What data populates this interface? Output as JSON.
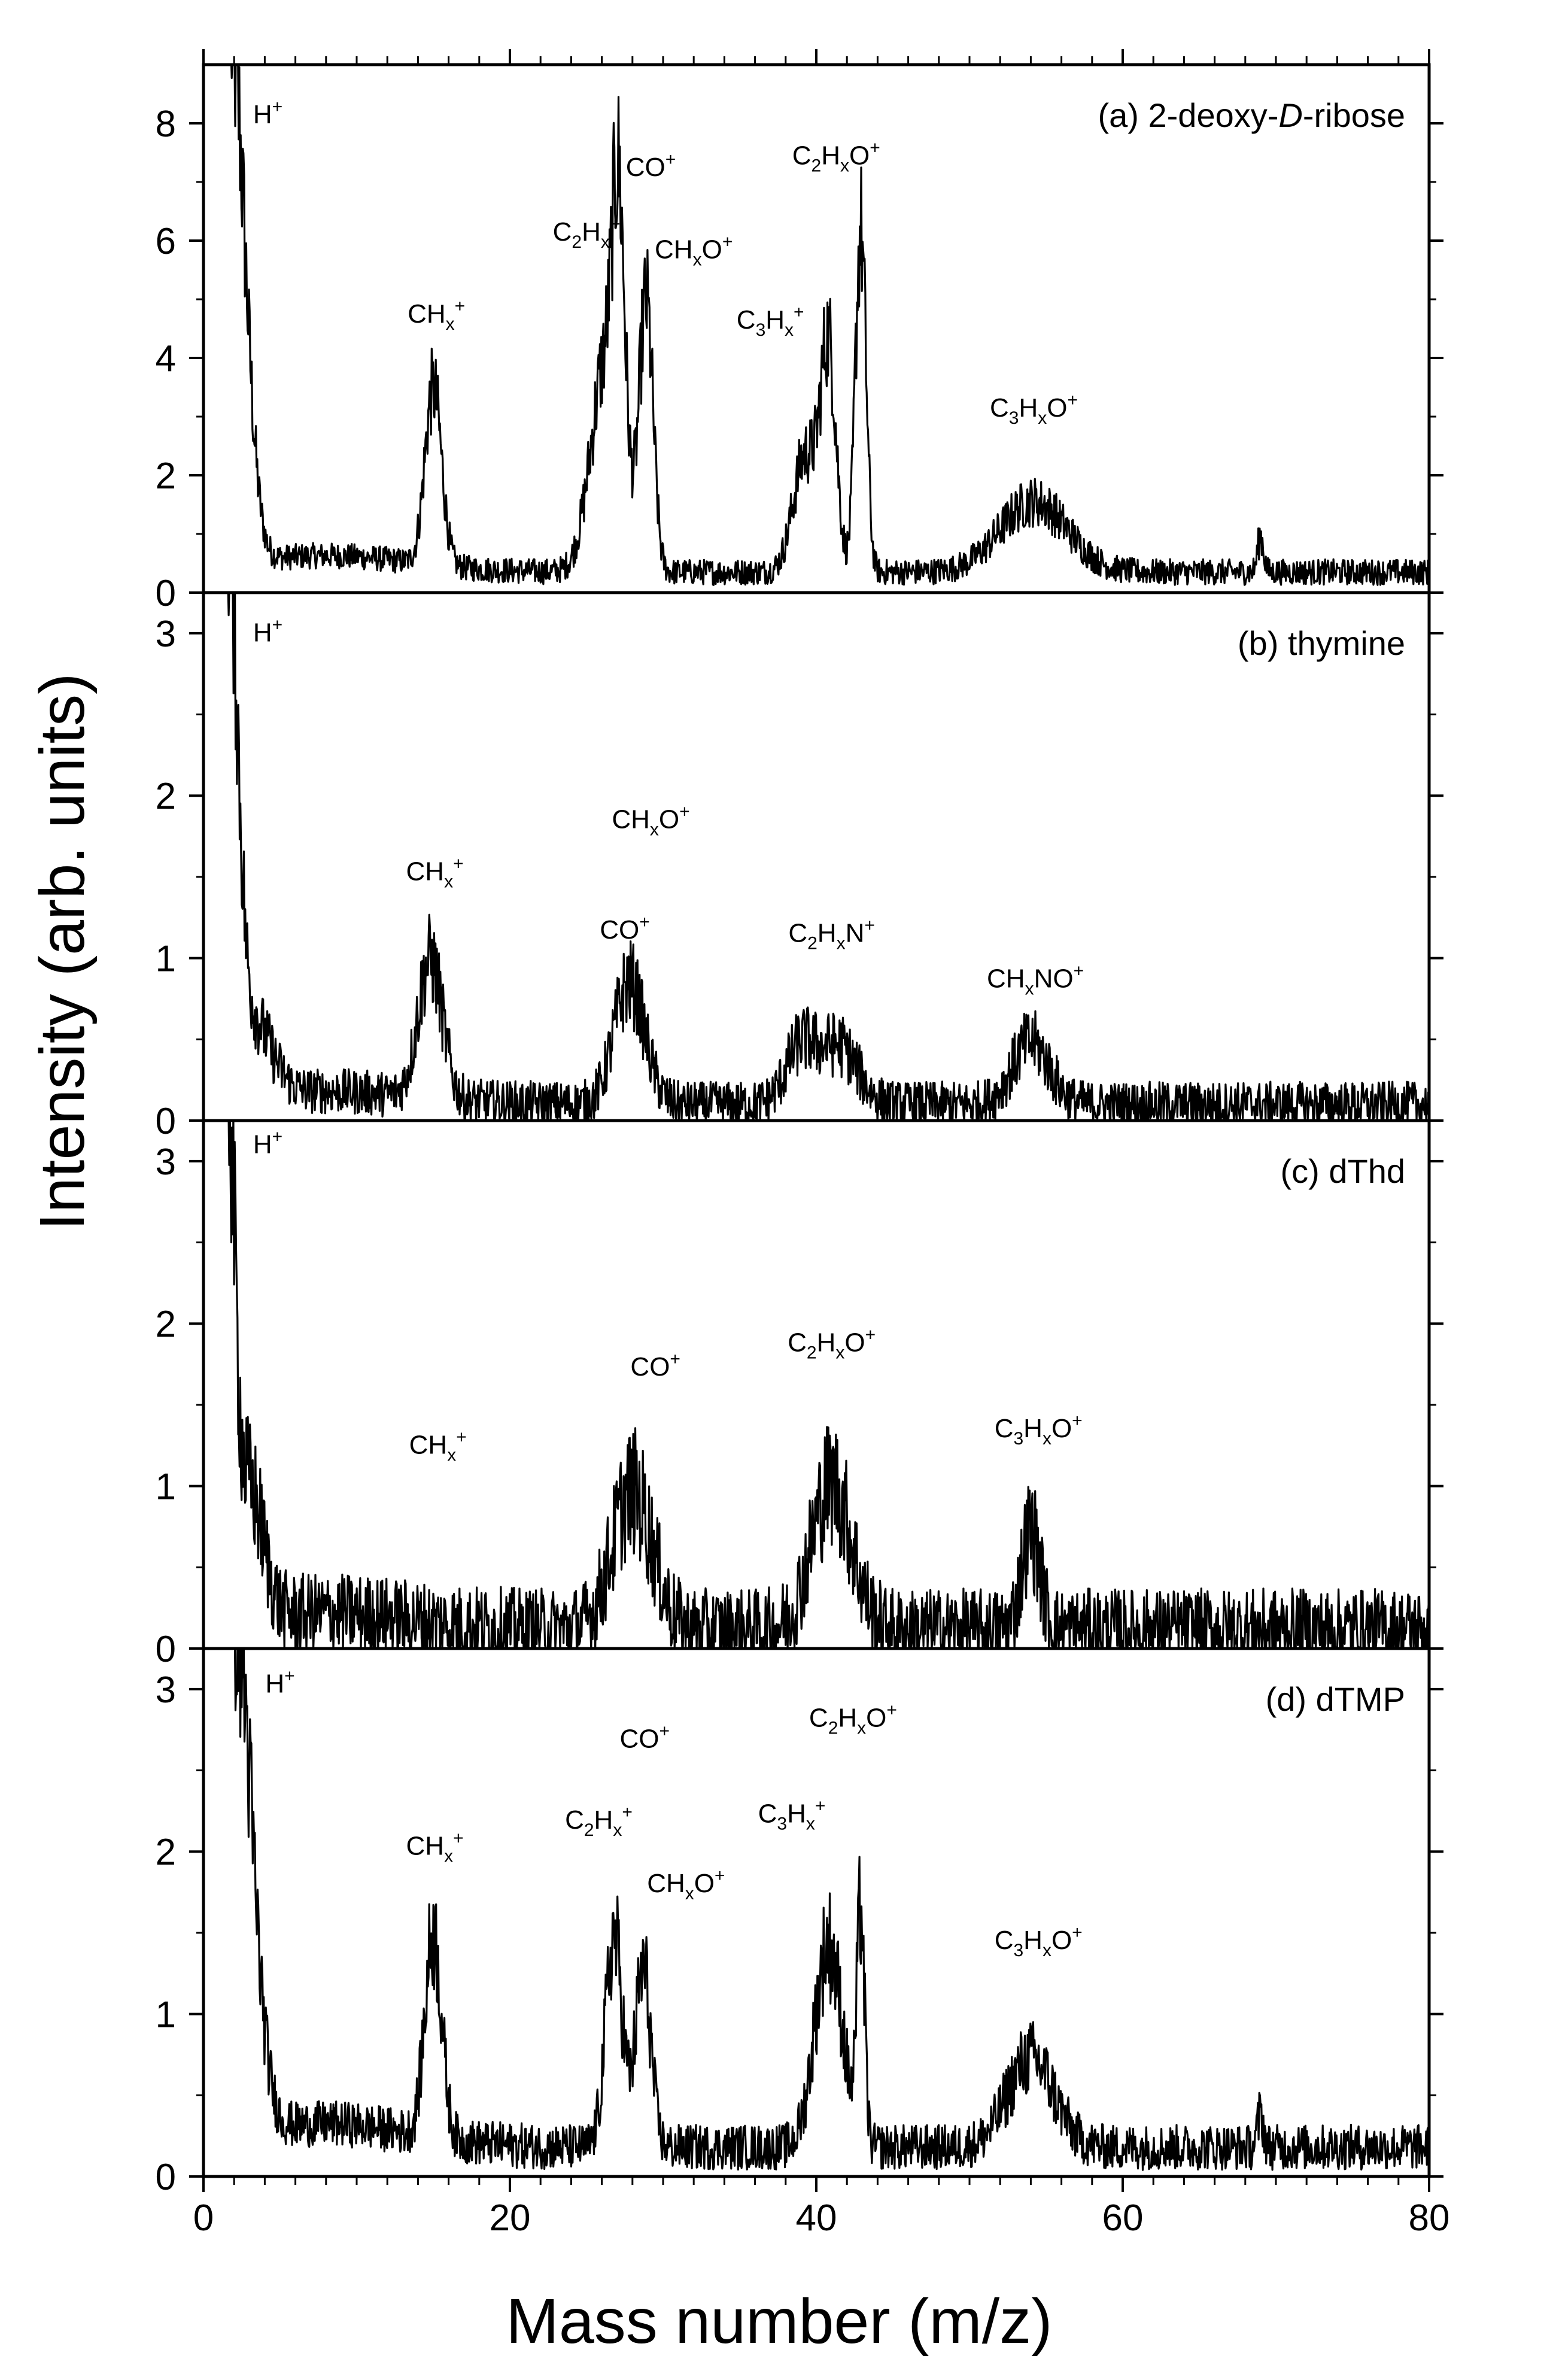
{
  "chart_data": {
    "type": "line",
    "xlabel": "Mass number (m/z)",
    "ylabel": "Intensity (arb. units)",
    "xlim": [
      0,
      80
    ],
    "xticks": [
      "0",
      "20",
      "40",
      "60",
      "80"
    ],
    "panels": [
      {
        "id": "a",
        "title_prefix": "(a) 2-deoxy-",
        "title_italic": "D",
        "title_suffix": "-ribose",
        "ylim": [
          0,
          9
        ],
        "yticks": [
          0,
          2,
          4,
          6,
          8
        ],
        "ytick_labels": [
          "0",
          "2",
          "4",
          "6",
          "8"
        ],
        "baseline": 0.35,
        "noise": 0.22,
        "start": [
          1.8,
          9.5
        ],
        "peaks": [
          [
            1.8,
            9.0,
            0.9
          ],
          [
            15.0,
            3.0,
            0.55
          ],
          [
            26.3,
            3.6,
            1.0
          ],
          [
            27.1,
            4.3,
            0.4
          ],
          [
            28.9,
            4.5,
            0.45
          ],
          [
            39.3,
            2.0,
            0.8
          ],
          [
            40.8,
            3.7,
            0.5
          ],
          [
            42.9,
            5.8,
            0.35
          ],
          [
            54.2,
            1.2,
            2.2
          ],
          [
            69.0,
            0.6,
            0.2
          ]
        ],
        "annotations": [
          {
            "parts": [
              [
                "H",
                ""
              ],
              [
                "+",
                "sup"
              ]
            ],
            "x": 4.2,
            "y": 8.0
          },
          {
            "parts": [
              [
                "CH",
                ""
              ],
              [
                "x",
                "sub"
              ],
              [
                "+",
                "sup"
              ]
            ],
            "x": 15.2,
            "y": 4.6
          },
          {
            "parts": [
              [
                "C",
                ""
              ],
              [
                "2",
                "sub"
              ],
              [
                "H",
                ""
              ],
              [
                "x",
                "sub"
              ],
              [
                "+",
                "sup"
              ]
            ],
            "x": 25.0,
            "y": 6.0
          },
          {
            "parts": [
              [
                "CO",
                ""
              ],
              [
                "+",
                "sup"
              ]
            ],
            "x": 29.2,
            "y": 7.1
          },
          {
            "parts": [
              [
                "CH",
                ""
              ],
              [
                "x",
                "sub"
              ],
              [
                "O",
                ""
              ],
              [
                "+",
                "sup"
              ]
            ],
            "x": 32.0,
            "y": 5.7
          },
          {
            "parts": [
              [
                "C",
                ""
              ],
              [
                "3",
                "sub"
              ],
              [
                "H",
                ""
              ],
              [
                "x",
                "sub"
              ],
              [
                "+",
                "sup"
              ]
            ],
            "x": 37.0,
            "y": 4.5
          },
          {
            "parts": [
              [
                "C",
                ""
              ],
              [
                "2",
                "sub"
              ],
              [
                "H",
                ""
              ],
              [
                "x",
                "sub"
              ],
              [
                "O",
                ""
              ],
              [
                "+",
                "sup"
              ]
            ],
            "x": 41.3,
            "y": 7.3
          },
          {
            "parts": [
              [
                "C",
                ""
              ],
              [
                "3",
                "sub"
              ],
              [
                "H",
                ""
              ],
              [
                "x",
                "sub"
              ],
              [
                "O",
                ""
              ],
              [
                "+",
                "sup"
              ]
            ],
            "x": 54.2,
            "y": 3.0
          }
        ]
      },
      {
        "id": "b",
        "title": "(b) thymine",
        "ylim": [
          0,
          3.25
        ],
        "yticks": [
          0,
          1,
          2,
          3
        ],
        "ytick_labels": [
          "0",
          "1",
          "2",
          "3"
        ],
        "baseline": 0.1,
        "noise": 0.14,
        "start": [
          1.6,
          3.3
        ],
        "peaks": [
          [
            1.6,
            3.3,
            0.6
          ],
          [
            3.0,
            0.5,
            1.3
          ],
          [
            14.8,
            0.85,
            0.8
          ],
          [
            27.8,
            0.75,
            1.0
          ],
          [
            39.0,
            0.35,
            1.0
          ],
          [
            41.5,
            0.35,
            1.2
          ],
          [
            54.0,
            0.38,
            1.2
          ]
        ],
        "annotations": [
          {
            "parts": [
              [
                "H",
                ""
              ],
              [
                "+",
                "sup"
              ]
            ],
            "x": 4.2,
            "y": 2.95
          },
          {
            "parts": [
              [
                "CH",
                ""
              ],
              [
                "x",
                "sub"
              ],
              [
                "+",
                "sup"
              ]
            ],
            "x": 15.1,
            "y": 1.48
          },
          {
            "parts": [
              [
                "CH",
                ""
              ],
              [
                "x",
                "sub"
              ],
              [
                "O",
                ""
              ],
              [
                "+",
                "sup"
              ]
            ],
            "x": 29.2,
            "y": 1.8
          },
          {
            "parts": [
              [
                "CO",
                ""
              ],
              [
                "+",
                "sup"
              ]
            ],
            "x": 27.5,
            "y": 1.12
          },
          {
            "parts": [
              [
                "C",
                ""
              ],
              [
                "2",
                "sub"
              ],
              [
                "H",
                ""
              ],
              [
                "x",
                "sub"
              ],
              [
                "N",
                ""
              ],
              [
                "+",
                "sup"
              ]
            ],
            "x": 41.0,
            "y": 1.1
          },
          {
            "parts": [
              [
                "CH",
                ""
              ],
              [
                "x",
                "sub"
              ],
              [
                "NO",
                ""
              ],
              [
                "+",
                "sup"
              ]
            ],
            "x": 54.3,
            "y": 0.82
          }
        ]
      },
      {
        "id": "c",
        "title": "(c) dThd",
        "ylim": [
          0,
          3.25
        ],
        "yticks": [
          0,
          1,
          2,
          3
        ],
        "ytick_labels": [
          "0",
          "1",
          "2",
          "3"
        ],
        "baseline": 0.12,
        "noise": 0.25,
        "start": [
          1.5,
          3.3
        ],
        "peaks": [
          [
            1.5,
            3.3,
            0.5
          ],
          [
            3.0,
            0.8,
            0.9
          ],
          [
            28.0,
            0.85,
            1.3
          ],
          [
            41.0,
            0.9,
            1.3
          ],
          [
            54.0,
            0.6,
            0.6
          ]
        ],
        "annotations": [
          {
            "parts": [
              [
                "H",
                ""
              ],
              [
                "+",
                "sup"
              ]
            ],
            "x": 4.2,
            "y": 3.05
          },
          {
            "parts": [
              [
                "CH",
                ""
              ],
              [
                "x",
                "sub"
              ],
              [
                "+",
                "sup"
              ]
            ],
            "x": 15.3,
            "y": 1.2
          },
          {
            "parts": [
              [
                "CO",
                ""
              ],
              [
                "+",
                "sup"
              ]
            ],
            "x": 29.5,
            "y": 1.68
          },
          {
            "parts": [
              [
                "C",
                ""
              ],
              [
                "2",
                "sub"
              ],
              [
                "H",
                ""
              ],
              [
                "x",
                "sub"
              ],
              [
                "O",
                ""
              ],
              [
                "+",
                "sup"
              ]
            ],
            "x": 41.0,
            "y": 1.83
          },
          {
            "parts": [
              [
                "C",
                ""
              ],
              [
                "3",
                "sub"
              ],
              [
                "H",
                ""
              ],
              [
                "x",
                "sub"
              ],
              [
                "O",
                ""
              ],
              [
                "+",
                "sup"
              ]
            ],
            "x": 54.5,
            "y": 1.3
          }
        ]
      },
      {
        "id": "d",
        "title": "(d) dTMP",
        "ylim": [
          0,
          3.25
        ],
        "yticks": [
          0,
          1,
          2,
          3
        ],
        "ytick_labels": [
          "0",
          "1",
          "2",
          "3"
        ],
        "baseline": 0.18,
        "noise": 0.14,
        "start": [
          2.0,
          3.3
        ],
        "peaks": [
          [
            2.0,
            3.3,
            1.1
          ],
          [
            15.0,
            1.25,
            0.55
          ],
          [
            26.8,
            1.3,
            0.55
          ],
          [
            28.7,
            1.1,
            0.5
          ],
          [
            40.8,
            1.25,
            0.9
          ],
          [
            42.9,
            1.4,
            0.25
          ],
          [
            54.0,
            0.55,
            1.5
          ],
          [
            69.0,
            0.2,
            0.2
          ]
        ],
        "annotations": [
          {
            "parts": [
              [
                "H",
                ""
              ],
              [
                "+",
                "sup"
              ]
            ],
            "x": 5.0,
            "y": 2.98
          },
          {
            "parts": [
              [
                "CH",
                ""
              ],
              [
                "x",
                "sub"
              ],
              [
                "+",
                "sup"
              ]
            ],
            "x": 15.1,
            "y": 1.98
          },
          {
            "parts": [
              [
                "C",
                ""
              ],
              [
                "2",
                "sub"
              ],
              [
                "H",
                ""
              ],
              [
                "x",
                "sub"
              ],
              [
                "+",
                "sup"
              ]
            ],
            "x": 25.8,
            "y": 2.14
          },
          {
            "parts": [
              [
                "CO",
                ""
              ],
              [
                "+",
                "sup"
              ]
            ],
            "x": 28.8,
            "y": 2.64
          },
          {
            "parts": [
              [
                "CH",
                ""
              ],
              [
                "x",
                "sub"
              ],
              [
                "O",
                ""
              ],
              [
                "+",
                "sup"
              ]
            ],
            "x": 31.5,
            "y": 1.75
          },
          {
            "parts": [
              [
                "C",
                ""
              ],
              [
                "3",
                "sub"
              ],
              [
                "H",
                ""
              ],
              [
                "x",
                "sub"
              ],
              [
                "+",
                "sup"
              ]
            ],
            "x": 38.4,
            "y": 2.18
          },
          {
            "parts": [
              [
                "C",
                ""
              ],
              [
                "2",
                "sub"
              ],
              [
                "H",
                ""
              ],
              [
                "x",
                "sub"
              ],
              [
                "O",
                ""
              ],
              [
                "+",
                "sup"
              ]
            ],
            "x": 42.4,
            "y": 2.77
          },
          {
            "parts": [
              [
                "C",
                ""
              ],
              [
                "3",
                "sub"
              ],
              [
                "H",
                ""
              ],
              [
                "x",
                "sub"
              ],
              [
                "O",
                ""
              ],
              [
                "+",
                "sup"
              ]
            ],
            "x": 54.5,
            "y": 1.4
          }
        ]
      }
    ]
  }
}
